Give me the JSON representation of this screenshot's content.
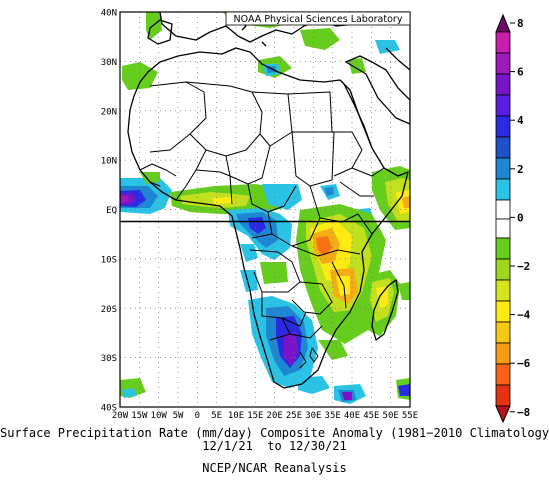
{
  "map": {
    "credit": "NOAA Physical Sciences Laboratory",
    "lon_labels": [
      "20W",
      "15W",
      "10W",
      "5W",
      "0",
      "5E",
      "10E",
      "15E",
      "20E",
      "25E",
      "30E",
      "35E",
      "40E",
      "45E",
      "50E",
      "55E"
    ],
    "lat_labels": [
      "40N",
      "30N",
      "20N",
      "10N",
      "EQ",
      "10S",
      "20S",
      "30S",
      "40S"
    ],
    "colors": {
      "v_m8": "#b4141e",
      "v_m7": "#e53214",
      "v_m6": "#f57314",
      "v_m5": "#f5ad14",
      "v_m4": "#ffea14",
      "v_m3": "#c2e01e",
      "v_m2": "#66cc1e",
      "v_p2": "#2ac3e6",
      "v_p3": "#1e87d2",
      "v_p4": "#2a2ae0",
      "v_p5": "#7814c8",
      "v_p6": "#a019bb",
      "v_p7": "#c81eab",
      "v_p8": "#6e0a6e"
    }
  },
  "colorbar": {
    "labels": [
      "8",
      "6",
      "4",
      "2",
      "0",
      "−2",
      "−4",
      "−6",
      "−8"
    ]
  },
  "caption": {
    "line1": "Surface Precipitation Rate (mm/day) Composite Anomaly (1981−2010 Climatology)",
    "line2": "12/1/21  to 12/30/21",
    "line3": "NCEP/NCAR Reanalysis"
  }
}
